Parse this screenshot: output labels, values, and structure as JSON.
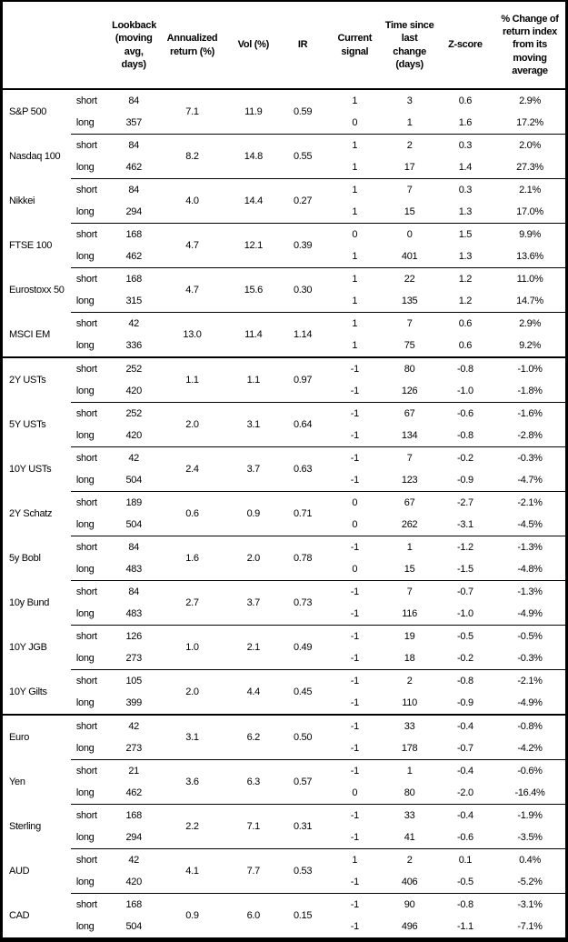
{
  "chart_data": {
    "type": "table",
    "title": "",
    "columns": [
      "",
      "",
      "Lookback (moving avg, days)",
      "Annualized return (%)",
      "Vol (%)",
      "IR",
      "Current signal",
      "Time since last change (days)",
      "Z-score",
      "% Change of return index from its moving average"
    ],
    "row_labels": [
      "short",
      "long"
    ],
    "groups": [
      {
        "name": "S&P 500",
        "annualized_return": "7.1",
        "vol": "11.9",
        "ir": "0.59",
        "section_end": false,
        "short": {
          "lookback": "84",
          "signal": "1",
          "days": "3",
          "zscore": "0.6",
          "change": "2.9%"
        },
        "long": {
          "lookback": "357",
          "signal": "0",
          "days": "1",
          "zscore": "1.6",
          "change": "17.2%"
        }
      },
      {
        "name": "Nasdaq 100",
        "annualized_return": "8.2",
        "vol": "14.8",
        "ir": "0.55",
        "section_end": false,
        "short": {
          "lookback": "84",
          "signal": "1",
          "days": "2",
          "zscore": "0.3",
          "change": "2.0%"
        },
        "long": {
          "lookback": "462",
          "signal": "1",
          "days": "17",
          "zscore": "1.4",
          "change": "27.3%"
        }
      },
      {
        "name": "Nikkei",
        "annualized_return": "4.0",
        "vol": "14.4",
        "ir": "0.27",
        "section_end": false,
        "short": {
          "lookback": "84",
          "signal": "1",
          "days": "7",
          "zscore": "0.3",
          "change": "2.1%"
        },
        "long": {
          "lookback": "294",
          "signal": "1",
          "days": "15",
          "zscore": "1.3",
          "change": "17.0%"
        }
      },
      {
        "name": "FTSE 100",
        "annualized_return": "4.7",
        "vol": "12.1",
        "ir": "0.39",
        "section_end": false,
        "short": {
          "lookback": "168",
          "signal": "0",
          "days": "0",
          "zscore": "1.5",
          "change": "9.9%"
        },
        "long": {
          "lookback": "462",
          "signal": "1",
          "days": "401",
          "zscore": "1.3",
          "change": "13.6%"
        }
      },
      {
        "name": "Eurostoxx 50",
        "annualized_return": "4.7",
        "vol": "15.6",
        "ir": "0.30",
        "section_end": false,
        "short": {
          "lookback": "168",
          "signal": "1",
          "days": "22",
          "zscore": "1.2",
          "change": "11.0%"
        },
        "long": {
          "lookback": "315",
          "signal": "1",
          "days": "135",
          "zscore": "1.2",
          "change": "14.7%"
        }
      },
      {
        "name": "MSCI EM",
        "annualized_return": "13.0",
        "vol": "11.4",
        "ir": "1.14",
        "section_end": true,
        "short": {
          "lookback": "42",
          "signal": "1",
          "days": "7",
          "zscore": "0.6",
          "change": "2.9%"
        },
        "long": {
          "lookback": "336",
          "signal": "1",
          "days": "75",
          "zscore": "0.6",
          "change": "9.2%"
        }
      },
      {
        "name": "2Y USTs",
        "annualized_return": "1.1",
        "vol": "1.1",
        "ir": "0.97",
        "section_end": false,
        "short": {
          "lookback": "252",
          "signal": "-1",
          "days": "80",
          "zscore": "-0.8",
          "change": "-1.0%"
        },
        "long": {
          "lookback": "420",
          "signal": "-1",
          "days": "126",
          "zscore": "-1.0",
          "change": "-1.8%"
        }
      },
      {
        "name": "5Y USTs",
        "annualized_return": "2.0",
        "vol": "3.1",
        "ir": "0.64",
        "section_end": false,
        "short": {
          "lookback": "252",
          "signal": "-1",
          "days": "67",
          "zscore": "-0.6",
          "change": "-1.6%"
        },
        "long": {
          "lookback": "420",
          "signal": "-1",
          "days": "134",
          "zscore": "-0.8",
          "change": "-2.8%"
        }
      },
      {
        "name": "10Y USTs",
        "annualized_return": "2.4",
        "vol": "3.7",
        "ir": "0.63",
        "section_end": false,
        "short": {
          "lookback": "42",
          "signal": "-1",
          "days": "7",
          "zscore": "-0.2",
          "change": "-0.3%"
        },
        "long": {
          "lookback": "504",
          "signal": "-1",
          "days": "123",
          "zscore": "-0.9",
          "change": "-4.7%"
        }
      },
      {
        "name": "2Y Schatz",
        "annualized_return": "0.6",
        "vol": "0.9",
        "ir": "0.71",
        "section_end": false,
        "short": {
          "lookback": "189",
          "signal": "0",
          "days": "67",
          "zscore": "-2.7",
          "change": "-2.1%"
        },
        "long": {
          "lookback": "504",
          "signal": "0",
          "days": "262",
          "zscore": "-3.1",
          "change": "-4.5%"
        }
      },
      {
        "name": "5y Bobl",
        "annualized_return": "1.6",
        "vol": "2.0",
        "ir": "0.78",
        "section_end": false,
        "short": {
          "lookback": "84",
          "signal": "-1",
          "days": "1",
          "zscore": "-1.2",
          "change": "-1.3%"
        },
        "long": {
          "lookback": "483",
          "signal": "0",
          "days": "15",
          "zscore": "-1.5",
          "change": "-4.8%"
        }
      },
      {
        "name": "10y Bund",
        "annualized_return": "2.7",
        "vol": "3.7",
        "ir": "0.73",
        "section_end": false,
        "short": {
          "lookback": "84",
          "signal": "-1",
          "days": "7",
          "zscore": "-0.7",
          "change": "-1.3%"
        },
        "long": {
          "lookback": "483",
          "signal": "-1",
          "days": "116",
          "zscore": "-1.0",
          "change": "-4.9%"
        }
      },
      {
        "name": "10Y JGB",
        "annualized_return": "1.0",
        "vol": "2.1",
        "ir": "0.49",
        "section_end": false,
        "short": {
          "lookback": "126",
          "signal": "-1",
          "days": "19",
          "zscore": "-0.5",
          "change": "-0.5%"
        },
        "long": {
          "lookback": "273",
          "signal": "-1",
          "days": "18",
          "zscore": "-0.2",
          "change": "-0.3%"
        }
      },
      {
        "name": "10Y Gilts",
        "annualized_return": "2.0",
        "vol": "4.4",
        "ir": "0.45",
        "section_end": true,
        "short": {
          "lookback": "105",
          "signal": "-1",
          "days": "2",
          "zscore": "-0.8",
          "change": "-2.1%"
        },
        "long": {
          "lookback": "399",
          "signal": "-1",
          "days": "110",
          "zscore": "-0.9",
          "change": "-4.9%"
        }
      },
      {
        "name": "Euro",
        "annualized_return": "3.1",
        "vol": "6.2",
        "ir": "0.50",
        "section_end": false,
        "short": {
          "lookback": "42",
          "signal": "-1",
          "days": "33",
          "zscore": "-0.4",
          "change": "-0.8%"
        },
        "long": {
          "lookback": "273",
          "signal": "-1",
          "days": "178",
          "zscore": "-0.7",
          "change": "-4.2%"
        }
      },
      {
        "name": "Yen",
        "annualized_return": "3.6",
        "vol": "6.3",
        "ir": "0.57",
        "section_end": false,
        "short": {
          "lookback": "21",
          "signal": "-1",
          "days": "1",
          "zscore": "-0.4",
          "change": "-0.6%"
        },
        "long": {
          "lookback": "462",
          "signal": "0",
          "days": "80",
          "zscore": "-2.0",
          "change": "-16.4%"
        }
      },
      {
        "name": "Sterling",
        "annualized_return": "2.2",
        "vol": "7.1",
        "ir": "0.31",
        "section_end": false,
        "short": {
          "lookback": "168",
          "signal": "-1",
          "days": "33",
          "zscore": "-0.4",
          "change": "-1.9%"
        },
        "long": {
          "lookback": "294",
          "signal": "-1",
          "days": "41",
          "zscore": "-0.6",
          "change": "-3.5%"
        }
      },
      {
        "name": "AUD",
        "annualized_return": "4.1",
        "vol": "7.7",
        "ir": "0.53",
        "section_end": false,
        "short": {
          "lookback": "42",
          "signal": "1",
          "days": "2",
          "zscore": "0.1",
          "change": "0.4%"
        },
        "long": {
          "lookback": "420",
          "signal": "-1",
          "days": "406",
          "zscore": "-0.5",
          "change": "-5.2%"
        }
      },
      {
        "name": "CAD",
        "annualized_return": "0.9",
        "vol": "6.0",
        "ir": "0.15",
        "section_end": false,
        "short": {
          "lookback": "168",
          "signal": "-1",
          "days": "90",
          "zscore": "-0.8",
          "change": "-3.1%"
        },
        "long": {
          "lookback": "504",
          "signal": "-1",
          "days": "496",
          "zscore": "-1.1",
          "change": "-7.1%"
        }
      }
    ]
  }
}
